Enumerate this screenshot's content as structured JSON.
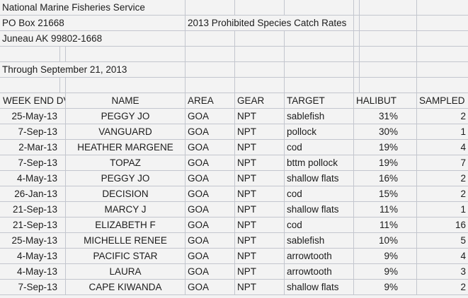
{
  "header_block": {
    "org": "National Marine Fisheries Service",
    "address1": "PO Box 21668",
    "address2": "Juneau AK 99802-1668",
    "title": "2013 Prohibited Species Catch Rates",
    "through": "Through September 21, 2013"
  },
  "columns": {
    "week_end": "WEEK END DV",
    "name": "NAME",
    "area": "AREA",
    "gear": "GEAR",
    "target": "TARGET",
    "halibut": "HALIBUT",
    "sampled": "SAMPLED"
  },
  "rows": [
    {
      "week_end": "25-May-13",
      "name": "PEGGY JO",
      "area": "GOA",
      "gear": "NPT",
      "target": "sablefish",
      "halibut": "31%",
      "sampled": "2"
    },
    {
      "week_end": "7-Sep-13",
      "name": "VANGUARD",
      "area": "GOA",
      "gear": "NPT",
      "target": "pollock",
      "halibut": "30%",
      "sampled": "1"
    },
    {
      "week_end": "2-Mar-13",
      "name": "HEATHER MARGENE",
      "area": "GOA",
      "gear": "NPT",
      "target": "cod",
      "halibut": "19%",
      "sampled": "4"
    },
    {
      "week_end": "7-Sep-13",
      "name": "TOPAZ",
      "area": "GOA",
      "gear": "NPT",
      "target": "bttm pollock",
      "halibut": "19%",
      "sampled": "7"
    },
    {
      "week_end": "4-May-13",
      "name": "PEGGY JO",
      "area": "GOA",
      "gear": "NPT",
      "target": "shallow flats",
      "halibut": "16%",
      "sampled": "2"
    },
    {
      "week_end": "26-Jan-13",
      "name": "DECISION",
      "area": "GOA",
      "gear": "NPT",
      "target": "cod",
      "halibut": "15%",
      "sampled": "2"
    },
    {
      "week_end": "21-Sep-13",
      "name": "MARCY J",
      "area": "GOA",
      "gear": "NPT",
      "target": "shallow flats",
      "halibut": "11%",
      "sampled": "1"
    },
    {
      "week_end": "21-Sep-13",
      "name": "ELIZABETH F",
      "area": "GOA",
      "gear": "NPT",
      "target": "cod",
      "halibut": "11%",
      "sampled": "16"
    },
    {
      "week_end": "25-May-13",
      "name": "MICHELLE RENEE",
      "area": "GOA",
      "gear": "NPT",
      "target": "sablefish",
      "halibut": "10%",
      "sampled": "5"
    },
    {
      "week_end": "4-May-13",
      "name": "PACIFIC STAR",
      "area": "GOA",
      "gear": "NPT",
      "target": "arrowtooth",
      "halibut": "9%",
      "sampled": "4"
    },
    {
      "week_end": "4-May-13",
      "name": "LAURA",
      "area": "GOA",
      "gear": "NPT",
      "target": "arrowtooth",
      "halibut": "9%",
      "sampled": "3"
    },
    {
      "week_end": "7-Sep-13",
      "name": "CAPE KIWANDA",
      "area": "GOA",
      "gear": "NPT",
      "target": "shallow flats",
      "halibut": "9%",
      "sampled": "2"
    }
  ]
}
